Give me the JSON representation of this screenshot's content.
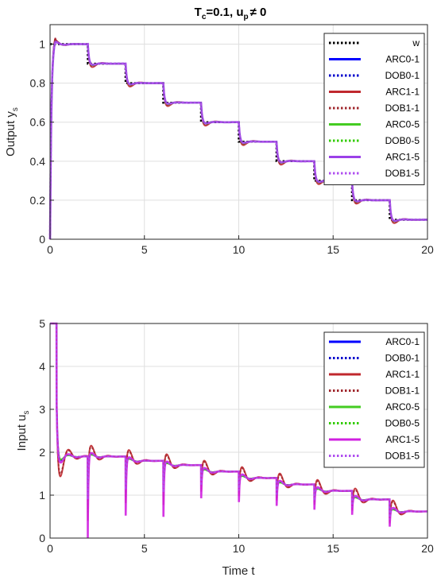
{
  "chart_data": [
    {
      "type": "line",
      "title": "T",
      "title_sub": "c",
      "title_mid": "=0.1, u",
      "title_sub2": "p",
      "title_tail": "≠ 0",
      "xlabel": "",
      "ylabel": "Output y",
      "ylabel_sub": "s",
      "xlim": [
        0,
        20
      ],
      "ylim": [
        0,
        1.1
      ],
      "xticks": [
        "0",
        "5",
        "10",
        "15",
        "20"
      ],
      "yticks": [
        "0",
        "0.2",
        "0.4",
        "0.6",
        "0.8",
        "1"
      ],
      "grid": true,
      "legend_position": "top-right",
      "reference": {
        "name": "w",
        "steps": [
          {
            "t": 0,
            "v": 1.0
          },
          {
            "t": 2,
            "v": 0.9
          },
          {
            "t": 4,
            "v": 0.8
          },
          {
            "t": 6,
            "v": 0.7
          },
          {
            "t": 8,
            "v": 0.6
          },
          {
            "t": 10,
            "v": 0.5
          },
          {
            "t": 12,
            "v": 0.4
          },
          {
            "t": 14,
            "v": 0.3
          },
          {
            "t": 16,
            "v": 0.2
          },
          {
            "t": 18,
            "v": 0.1
          }
        ]
      },
      "series": [
        {
          "name": "ARC0-1",
          "color": "#0000ff",
          "dash": "solid",
          "overshoot": 0.04,
          "undershoot": 0.02
        },
        {
          "name": "DOB0-1",
          "color": "#0000cc",
          "dash": "dotted",
          "overshoot": 0.04,
          "undershoot": 0.02
        },
        {
          "name": "ARC1-1",
          "color": "#c0282e",
          "dash": "solid",
          "overshoot": 0.05,
          "undershoot": 0.04
        },
        {
          "name": "DOB1-1",
          "color": "#a0282e",
          "dash": "dotted",
          "overshoot": 0.05,
          "undershoot": 0.03
        },
        {
          "name": "ARC0-5",
          "color": "#44cc22",
          "dash": "solid",
          "overshoot": 0.03,
          "undershoot": 0.02
        },
        {
          "name": "DOB0-5",
          "color": "#33cc00",
          "dash": "dotted",
          "overshoot": 0.03,
          "undershoot": 0.02
        },
        {
          "name": "ARC1-5",
          "color": "#9b40e8",
          "dash": "solid",
          "overshoot": 0.03,
          "undershoot": 0.015
        },
        {
          "name": "DOB1-5",
          "color": "#b050f0",
          "dash": "dotted",
          "overshoot": 0.03,
          "undershoot": 0.015
        }
      ]
    },
    {
      "type": "line",
      "xlabel": "Time t",
      "ylabel": "Input u",
      "ylabel_sub": "s",
      "xlim": [
        0,
        20
      ],
      "ylim": [
        0,
        5
      ],
      "xticks": [
        "0",
        "5",
        "10",
        "15",
        "20"
      ],
      "yticks": [
        "0",
        "1",
        "2",
        "3",
        "4",
        "5"
      ],
      "grid": true,
      "legend_position": "top-right",
      "levels": [
        {
          "t": 0,
          "v": 1.9
        },
        {
          "t": 2,
          "v": 1.9
        },
        {
          "t": 4,
          "v": 1.8
        },
        {
          "t": 6,
          "v": 1.7
        },
        {
          "t": 8,
          "v": 1.55
        },
        {
          "t": 10,
          "v": 1.4
        },
        {
          "t": 12,
          "v": 1.25
        },
        {
          "t": 14,
          "v": 1.1
        },
        {
          "t": 16,
          "v": 0.9
        },
        {
          "t": 18,
          "v": 0.62
        }
      ],
      "series": [
        {
          "name": "ARC0-1",
          "color": "#0000ff",
          "dash": "solid",
          "dip": 0.45,
          "bump": 0.1
        },
        {
          "name": "DOB0-1",
          "color": "#0000cc",
          "dash": "dotted",
          "dip": 0.35,
          "bump": 0.1
        },
        {
          "name": "ARC1-1",
          "color": "#c0282e",
          "dash": "solid",
          "dip": 0.75,
          "bump": 0.45
        },
        {
          "name": "DOB1-1",
          "color": "#a0282e",
          "dash": "dotted",
          "dip": 0.65,
          "bump": 0.4
        },
        {
          "name": "ARC0-5",
          "color": "#44cc22",
          "dash": "solid",
          "dip": 0.3,
          "bump": 0.08
        },
        {
          "name": "DOB0-5",
          "color": "#33cc00",
          "dash": "dotted",
          "dip": 0.3,
          "bump": 0.08
        },
        {
          "name": "ARC1-5",
          "color": "#d020e0",
          "dash": "solid",
          "dip": 0.95,
          "bump": 0.15
        },
        {
          "name": "DOB1-5",
          "color": "#b050f0",
          "dash": "dotted",
          "dip": 0.5,
          "bump": 0.12
        }
      ]
    }
  ]
}
